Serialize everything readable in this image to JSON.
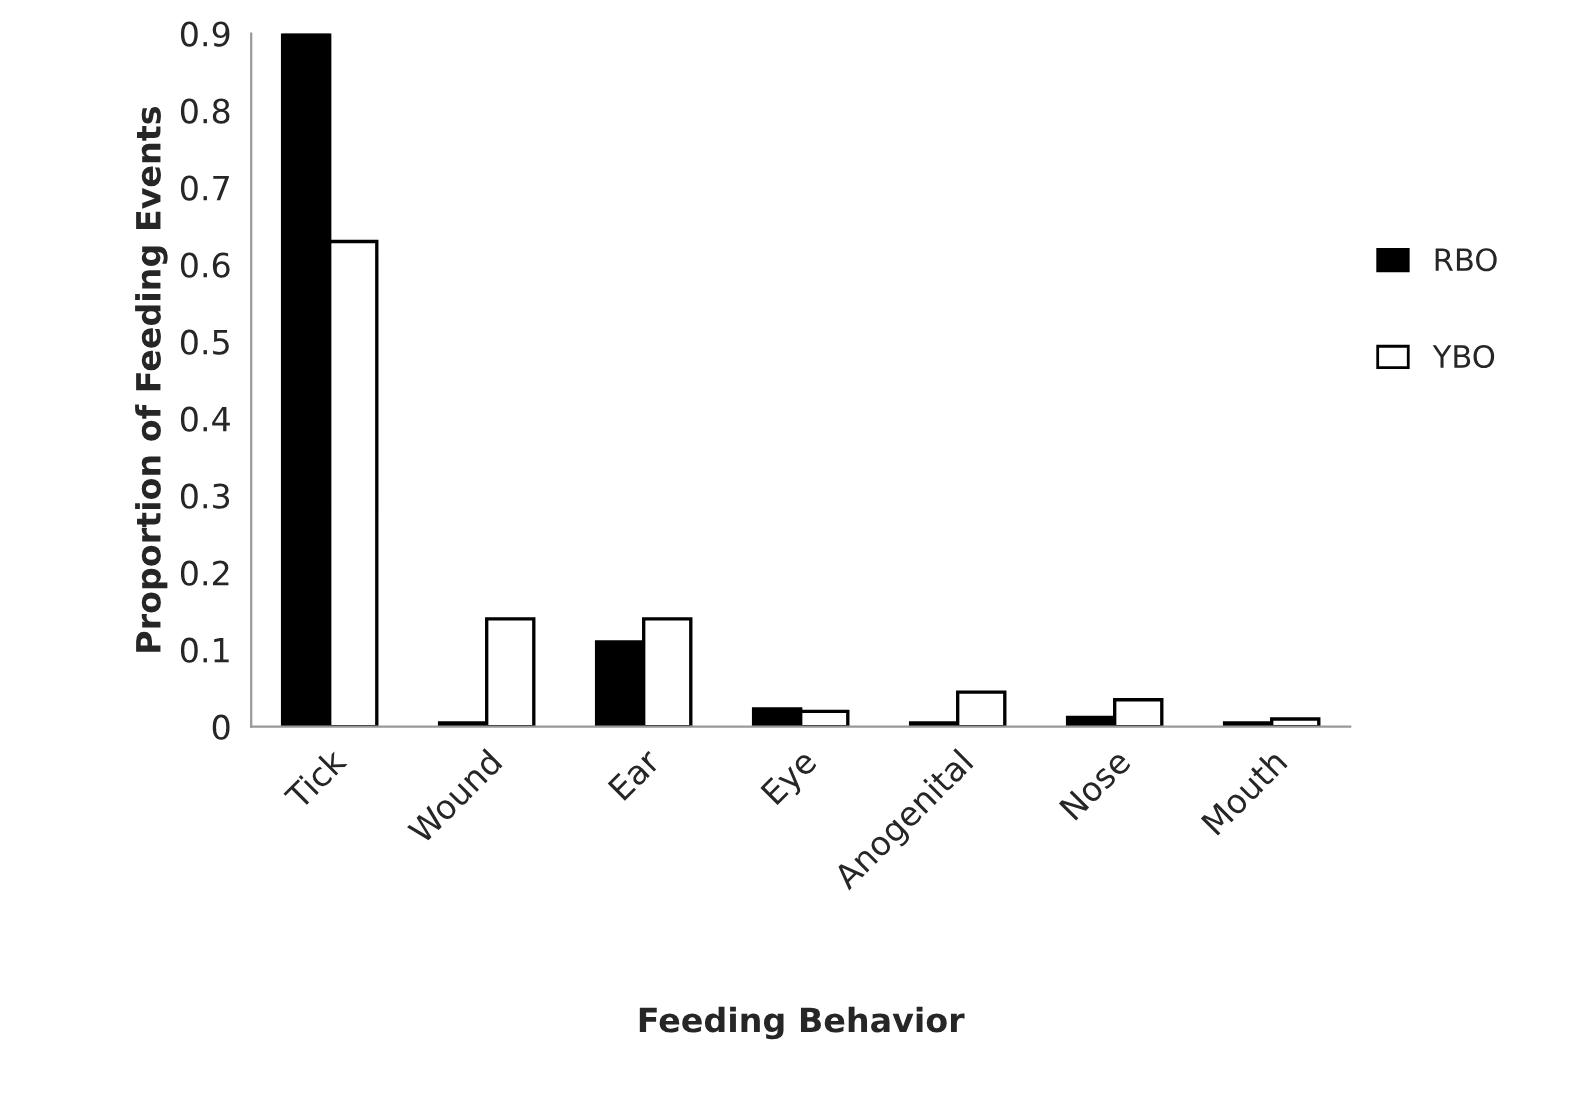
{
  "chart_data": {
    "type": "bar",
    "xlabel": "Feeding Behavior",
    "ylabel": "Proportion of Feeding Events",
    "categories": [
      "Tick",
      "Wound",
      "Ear",
      "Eye",
      "Anogenital",
      "Nose",
      "Mouth"
    ],
    "series": [
      {
        "name": "RBO",
        "color": "#000000",
        "values": [
          0.9,
          0.005,
          0.11,
          0.023,
          0.005,
          0.012,
          0.005
        ]
      },
      {
        "name": "YBO",
        "color": "#ffffff",
        "values": [
          0.63,
          0.14,
          0.14,
          0.02,
          0.045,
          0.035,
          0.01
        ]
      }
    ],
    "ylim": [
      0,
      0.9
    ],
    "yticks": [
      0,
      0.1,
      0.2,
      0.3,
      0.4,
      0.5,
      0.6,
      0.7,
      0.8,
      0.9
    ],
    "grid": false,
    "legend": "right"
  }
}
